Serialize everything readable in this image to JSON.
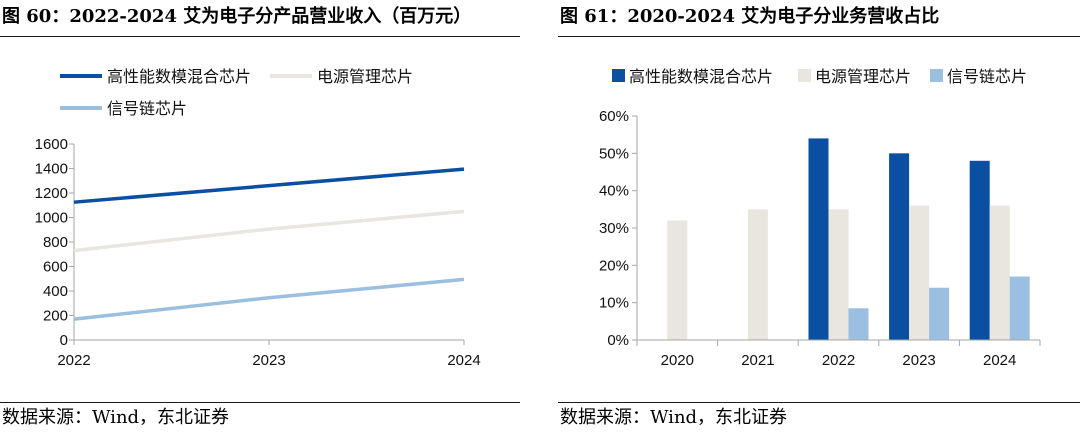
{
  "figures": [
    {
      "title": "图 60：2022-2024 艾为电子分产品营业收入（百万元）",
      "source": "数据来源：Wind，东北证券"
    },
    {
      "title": "图 61：2020-2024 艾为电子分业务营收占比",
      "source": "数据来源：Wind，东北证券"
    }
  ],
  "colors": {
    "high_perf_mixed_signal": "#0a4fa2",
    "power_management": "#e9e5df",
    "signal_chain": "#9bbfe0",
    "axis": "#a6a6a6"
  },
  "chart_data": [
    {
      "type": "line",
      "title": "",
      "xlabel": "",
      "ylabel": "",
      "x": [
        "2022",
        "2023",
        "2024"
      ],
      "ylim": [
        0,
        1600
      ],
      "yticks": [
        0,
        200,
        400,
        600,
        800,
        1000,
        1200,
        1400,
        1600
      ],
      "grid": false,
      "legend_position": "top-left",
      "series": [
        {
          "name": "高性能数模混合芯片",
          "values": [
            1125,
            1260,
            1395
          ],
          "color_key": "high_perf_mixed_signal"
        },
        {
          "name": "电源管理芯片",
          "values": [
            730,
            905,
            1050
          ],
          "color_key": "power_management"
        },
        {
          "name": "信号链芯片",
          "values": [
            170,
            345,
            495
          ],
          "color_key": "signal_chain"
        }
      ]
    },
    {
      "type": "bar",
      "title": "",
      "xlabel": "",
      "ylabel": "",
      "categories": [
        "2020",
        "2021",
        "2022",
        "2023",
        "2024"
      ],
      "ylim": [
        0,
        60
      ],
      "yticks": [
        0,
        10,
        20,
        30,
        40,
        50,
        60
      ],
      "y_tick_suffix": "%",
      "grid": false,
      "legend_position": "top",
      "series": [
        {
          "name": "高性能数模混合芯片",
          "values": [
            null,
            null,
            54,
            50,
            48
          ],
          "color_key": "high_perf_mixed_signal"
        },
        {
          "name": "电源管理芯片",
          "values": [
            32,
            35,
            35,
            36,
            36
          ],
          "color_key": "power_management"
        },
        {
          "name": "信号链芯片",
          "values": [
            null,
            null,
            8.5,
            14,
            17
          ],
          "color_key": "signal_chain"
        }
      ]
    }
  ]
}
